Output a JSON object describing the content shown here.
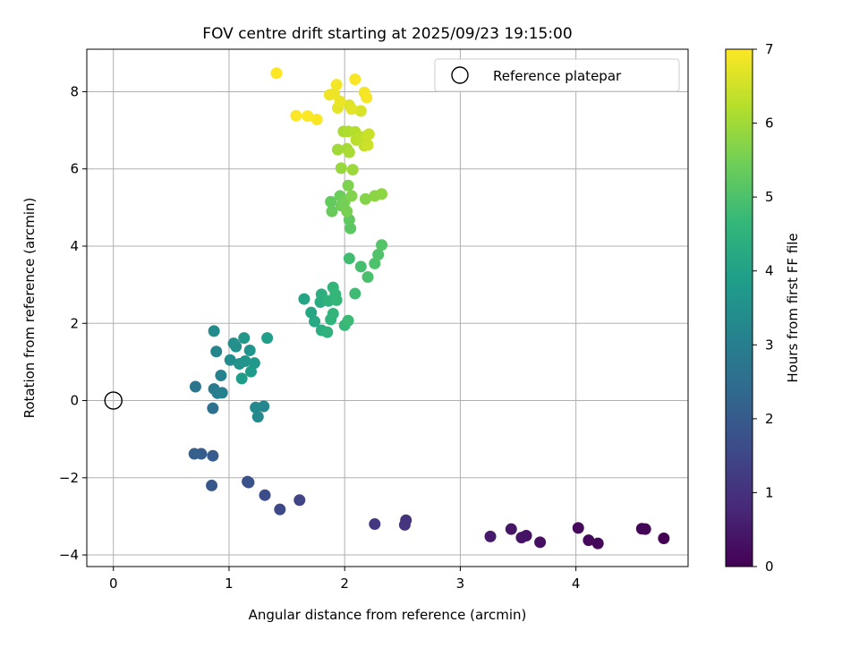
{
  "chart_data": {
    "type": "scatter",
    "title": "FOV centre drift starting at 2025/09/23 19:15:00",
    "xlabel": "Angular distance from reference (arcmin)",
    "ylabel": "Rotation from reference (arcmin)",
    "xlim": [
      -0.23,
      4.97
    ],
    "ylim": [
      -4.3,
      9.1
    ],
    "xticks": [
      0,
      1,
      2,
      3,
      4
    ],
    "xtick_labels": [
      "0",
      "1",
      "2",
      "3",
      "4"
    ],
    "yticks": [
      -4,
      -2,
      0,
      2,
      4,
      6,
      8
    ],
    "ytick_labels": [
      "−4",
      "−2",
      "0",
      "2",
      "4",
      "6",
      "8"
    ],
    "grid": true,
    "legend": {
      "location": "top-right",
      "entries": [
        "Reference platepar"
      ]
    },
    "reference_point": {
      "x": 0,
      "y": 0,
      "label": "Reference platepar"
    },
    "colorbar": {
      "label": "Hours from first FF file",
      "colormap": "viridis",
      "range": [
        0,
        7
      ],
      "ticks": [
        0,
        1,
        2,
        3,
        4,
        5,
        6,
        7
      ],
      "tick_labels": [
        "0",
        "1",
        "2",
        "3",
        "4",
        "5",
        "6",
        "7"
      ]
    },
    "viridis_stops": [
      "#440154",
      "#482878",
      "#3e4989",
      "#31688e",
      "#26828e",
      "#1f9e89",
      "#35b779",
      "#6ece58",
      "#b5de2b",
      "#fde725"
    ],
    "points": [
      {
        "x": 4.76,
        "y": -3.57,
        "t": 0.02
      },
      {
        "x": 4.6,
        "y": -3.33,
        "t": 0.05
      },
      {
        "x": 4.57,
        "y": -3.32,
        "t": 0.08
      },
      {
        "x": 4.19,
        "y": -3.7,
        "t": 0.12
      },
      {
        "x": 4.11,
        "y": -3.62,
        "t": 0.15
      },
      {
        "x": 4.02,
        "y": -3.3,
        "t": 0.18
      },
      {
        "x": 3.69,
        "y": -3.67,
        "t": 0.3
      },
      {
        "x": 3.57,
        "y": -3.5,
        "t": 0.35
      },
      {
        "x": 3.53,
        "y": -3.55,
        "t": 0.38
      },
      {
        "x": 3.44,
        "y": -3.33,
        "t": 0.42
      },
      {
        "x": 3.26,
        "y": -3.52,
        "t": 0.5
      },
      {
        "x": 2.53,
        "y": -3.1,
        "t": 1.02
      },
      {
        "x": 2.52,
        "y": -3.22,
        "t": 1.05
      },
      {
        "x": 2.26,
        "y": -3.2,
        "t": 1.15
      },
      {
        "x": 1.61,
        "y": -2.58,
        "t": 1.45
      },
      {
        "x": 1.44,
        "y": -2.82,
        "t": 1.55
      },
      {
        "x": 1.31,
        "y": -2.45,
        "t": 1.65
      },
      {
        "x": 1.17,
        "y": -2.12,
        "t": 1.75
      },
      {
        "x": 1.16,
        "y": -2.1,
        "t": 1.78
      },
      {
        "x": 0.85,
        "y": -2.2,
        "t": 1.9
      },
      {
        "x": 0.86,
        "y": -1.43,
        "t": 2.0
      },
      {
        "x": 0.76,
        "y": -1.38,
        "t": 2.05
      },
      {
        "x": 0.7,
        "y": -1.38,
        "t": 2.1
      },
      {
        "x": 0.86,
        "y": -0.2,
        "t": 2.6
      },
      {
        "x": 0.71,
        "y": 0.36,
        "t": 2.75
      },
      {
        "x": 0.87,
        "y": 0.3,
        "t": 2.9
      },
      {
        "x": 0.9,
        "y": 0.19,
        "t": 3.0
      },
      {
        "x": 0.94,
        "y": 0.2,
        "t": 3.05
      },
      {
        "x": 0.93,
        "y": 0.65,
        "t": 3.1
      },
      {
        "x": 0.89,
        "y": 1.27,
        "t": 3.2
      },
      {
        "x": 0.87,
        "y": 1.8,
        "t": 3.35
      },
      {
        "x": 1.3,
        "y": -0.15,
        "t": 3.25
      },
      {
        "x": 1.23,
        "y": -0.18,
        "t": 3.3
      },
      {
        "x": 1.25,
        "y": -0.42,
        "t": 3.32
      },
      {
        "x": 1.01,
        "y": 1.05,
        "t": 3.4
      },
      {
        "x": 1.04,
        "y": 1.48,
        "t": 3.45
      },
      {
        "x": 1.06,
        "y": 1.4,
        "t": 3.5
      },
      {
        "x": 1.09,
        "y": 0.95,
        "t": 3.55
      },
      {
        "x": 1.14,
        "y": 1.02,
        "t": 3.6
      },
      {
        "x": 1.18,
        "y": 1.3,
        "t": 3.65
      },
      {
        "x": 1.13,
        "y": 1.62,
        "t": 3.7
      },
      {
        "x": 1.22,
        "y": 0.97,
        "t": 3.75
      },
      {
        "x": 1.19,
        "y": 0.75,
        "t": 3.8
      },
      {
        "x": 1.11,
        "y": 0.57,
        "t": 3.85
      },
      {
        "x": 1.33,
        "y": 1.62,
        "t": 3.9
      },
      {
        "x": 1.65,
        "y": 2.63,
        "t": 4.1
      },
      {
        "x": 1.71,
        "y": 2.28,
        "t": 4.15
      },
      {
        "x": 1.74,
        "y": 2.05,
        "t": 4.2
      },
      {
        "x": 1.79,
        "y": 2.55,
        "t": 4.3
      },
      {
        "x": 1.8,
        "y": 1.82,
        "t": 4.35
      },
      {
        "x": 1.8,
        "y": 2.75,
        "t": 4.4
      },
      {
        "x": 1.85,
        "y": 1.77,
        "t": 4.45
      },
      {
        "x": 1.86,
        "y": 2.58,
        "t": 4.5
      },
      {
        "x": 1.88,
        "y": 2.1,
        "t": 4.55
      },
      {
        "x": 1.9,
        "y": 2.93,
        "t": 4.6
      },
      {
        "x": 1.9,
        "y": 2.25,
        "t": 4.6
      },
      {
        "x": 1.93,
        "y": 2.6,
        "t": 4.65
      },
      {
        "x": 1.92,
        "y": 2.75,
        "t": 4.65
      },
      {
        "x": 2.0,
        "y": 1.95,
        "t": 4.7
      },
      {
        "x": 2.03,
        "y": 2.07,
        "t": 4.75
      },
      {
        "x": 2.09,
        "y": 2.77,
        "t": 4.8
      },
      {
        "x": 2.04,
        "y": 3.68,
        "t": 4.85
      },
      {
        "x": 2.14,
        "y": 3.47,
        "t": 4.9
      },
      {
        "x": 2.2,
        "y": 3.2,
        "t": 4.95
      },
      {
        "x": 2.26,
        "y": 3.55,
        "t": 5.0
      },
      {
        "x": 2.29,
        "y": 3.78,
        "t": 5.05
      },
      {
        "x": 2.32,
        "y": 4.03,
        "t": 5.1
      },
      {
        "x": 2.05,
        "y": 4.46,
        "t": 5.2
      },
      {
        "x": 2.04,
        "y": 4.68,
        "t": 5.25
      },
      {
        "x": 1.88,
        "y": 5.15,
        "t": 5.3
      },
      {
        "x": 1.89,
        "y": 4.9,
        "t": 5.35
      },
      {
        "x": 1.96,
        "y": 5.3,
        "t": 5.4
      },
      {
        "x": 1.97,
        "y": 5.05,
        "t": 5.45
      },
      {
        "x": 2.0,
        "y": 5.15,
        "t": 5.5
      },
      {
        "x": 2.02,
        "y": 4.9,
        "t": 5.55
      },
      {
        "x": 2.03,
        "y": 5.57,
        "t": 5.6
      },
      {
        "x": 2.06,
        "y": 5.3,
        "t": 5.65
      },
      {
        "x": 2.18,
        "y": 5.22,
        "t": 5.7
      },
      {
        "x": 2.26,
        "y": 5.3,
        "t": 5.75
      },
      {
        "x": 2.32,
        "y": 5.35,
        "t": 5.8
      },
      {
        "x": 1.97,
        "y": 6.02,
        "t": 5.9
      },
      {
        "x": 2.07,
        "y": 5.98,
        "t": 5.95
      },
      {
        "x": 1.94,
        "y": 6.5,
        "t": 6.0
      },
      {
        "x": 2.02,
        "y": 6.52,
        "t": 6.05
      },
      {
        "x": 2.04,
        "y": 6.43,
        "t": 6.08
      },
      {
        "x": 1.99,
        "y": 6.97,
        "t": 6.1
      },
      {
        "x": 2.03,
        "y": 6.97,
        "t": 6.15
      },
      {
        "x": 2.09,
        "y": 6.96,
        "t": 6.2
      },
      {
        "x": 2.1,
        "y": 6.75,
        "t": 6.25
      },
      {
        "x": 2.14,
        "y": 6.83,
        "t": 6.3
      },
      {
        "x": 2.17,
        "y": 6.6,
        "t": 6.35
      },
      {
        "x": 2.19,
        "y": 6.85,
        "t": 6.4
      },
      {
        "x": 2.21,
        "y": 6.9,
        "t": 6.45
      },
      {
        "x": 2.2,
        "y": 6.62,
        "t": 6.48
      },
      {
        "x": 2.14,
        "y": 7.5,
        "t": 6.6
      },
      {
        "x": 2.04,
        "y": 7.65,
        "t": 6.65
      },
      {
        "x": 2.06,
        "y": 7.55,
        "t": 6.7
      },
      {
        "x": 1.94,
        "y": 7.58,
        "t": 6.75
      },
      {
        "x": 1.96,
        "y": 7.75,
        "t": 6.8
      },
      {
        "x": 1.91,
        "y": 7.95,
        "t": 6.82
      },
      {
        "x": 1.87,
        "y": 7.92,
        "t": 6.85
      },
      {
        "x": 1.93,
        "y": 8.18,
        "t": 6.88
      },
      {
        "x": 2.17,
        "y": 7.98,
        "t": 6.9
      },
      {
        "x": 2.19,
        "y": 7.85,
        "t": 6.92
      },
      {
        "x": 2.09,
        "y": 8.32,
        "t": 6.95
      },
      {
        "x": 1.76,
        "y": 7.28,
        "t": 6.96
      },
      {
        "x": 1.68,
        "y": 7.37,
        "t": 6.97
      },
      {
        "x": 1.58,
        "y": 7.38,
        "t": 6.98
      },
      {
        "x": 1.41,
        "y": 8.48,
        "t": 7.0
      }
    ]
  }
}
